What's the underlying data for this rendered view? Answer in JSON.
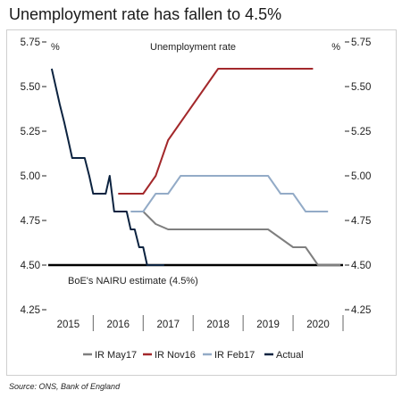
{
  "title": "Unemployment rate has fallen to 4.5%",
  "source": "Source: ONS, Bank of England",
  "chart_data": {
    "type": "line",
    "title": "Unemployment rate",
    "y_unit_left": "%",
    "y_unit_right": "%",
    "ylim": [
      4.25,
      5.75
    ],
    "y_ticks": [
      4.25,
      4.5,
      4.75,
      5.0,
      5.25,
      5.5,
      5.75
    ],
    "y_tick_labels": [
      "4.25",
      "4.50",
      "4.75",
      "5.00",
      "5.25",
      "5.50",
      "5.75"
    ],
    "x_range": [
      2014.6,
      2020.5
    ],
    "x_tick_labels": [
      {
        "x": 2015.0,
        "label": "2015"
      },
      {
        "x": 2016.0,
        "label": "2016"
      },
      {
        "x": 2017.0,
        "label": "2017"
      },
      {
        "x": 2018.0,
        "label": "2018"
      },
      {
        "x": 2019.0,
        "label": "2019"
      },
      {
        "x": 2020.0,
        "label": "2020"
      }
    ],
    "x_tick_marks": [
      2014.5,
      2015.5,
      2016.5,
      2017.5,
      2018.5,
      2019.5,
      2020.5
    ],
    "grid": false,
    "legend_position": "bottom",
    "reference_line": {
      "value": 4.5,
      "label": "BoE's NAIRU estimate (4.5%)",
      "color": "#000000"
    },
    "series": [
      {
        "name": "IR May17",
        "color": "#7f7f7f",
        "x": [
          2016.5,
          2016.75,
          2017.0,
          2017.25,
          2017.5,
          2017.75,
          2018.0,
          2018.25,
          2018.5,
          2018.75,
          2019.0,
          2019.25,
          2019.5,
          2019.75,
          2020.0,
          2020.25,
          2020.45
        ],
        "y": [
          4.8,
          4.73,
          4.7,
          4.7,
          4.7,
          4.7,
          4.7,
          4.7,
          4.7,
          4.7,
          4.7,
          4.65,
          4.6,
          4.6,
          4.5,
          4.5,
          4.5
        ]
      },
      {
        "name": "IR Nov16",
        "color": "#a3282b",
        "x": [
          2016.0,
          2016.25,
          2016.5,
          2016.75,
          2017.0,
          2017.25,
          2017.5,
          2017.75,
          2018.0,
          2018.25,
          2018.5,
          2018.75,
          2019.0,
          2019.25,
          2019.5,
          2019.9
        ],
        "y": [
          4.9,
          4.9,
          4.9,
          5.0,
          5.2,
          5.3,
          5.4,
          5.5,
          5.6,
          5.6,
          5.6,
          5.6,
          5.6,
          5.6,
          5.6,
          5.6
        ]
      },
      {
        "name": "IR Feb17",
        "color": "#93abc7",
        "x": [
          2016.25,
          2016.5,
          2016.75,
          2017.0,
          2017.25,
          2017.5,
          2017.75,
          2018.0,
          2018.25,
          2018.5,
          2018.75,
          2019.0,
          2019.25,
          2019.5,
          2019.75,
          2020.0,
          2020.2
        ],
        "y": [
          4.8,
          4.8,
          4.9,
          4.9,
          5.0,
          5.0,
          5.0,
          5.0,
          5.0,
          5.0,
          5.0,
          5.0,
          4.9,
          4.9,
          4.8,
          4.8,
          4.8
        ]
      },
      {
        "name": "Actual",
        "color": "#0c2340",
        "x": [
          2014.67,
          2014.75,
          2014.83,
          2014.92,
          2015.0,
          2015.08,
          2015.17,
          2015.25,
          2015.33,
          2015.42,
          2015.5,
          2015.58,
          2015.67,
          2015.75,
          2015.83,
          2015.92,
          2016.0,
          2016.08,
          2016.17,
          2016.25,
          2016.33,
          2016.42,
          2016.5,
          2016.58,
          2016.67,
          2016.75,
          2016.83,
          2016.92
        ],
        "y": [
          5.6,
          5.5,
          5.4,
          5.3,
          5.2,
          5.1,
          5.1,
          5.1,
          5.1,
          5.0,
          4.9,
          4.9,
          4.9,
          4.9,
          5.0,
          4.8,
          4.8,
          4.8,
          4.8,
          4.7,
          4.7,
          4.6,
          4.6,
          4.5,
          4.5,
          4.5,
          4.5,
          4.5
        ]
      }
    ]
  }
}
